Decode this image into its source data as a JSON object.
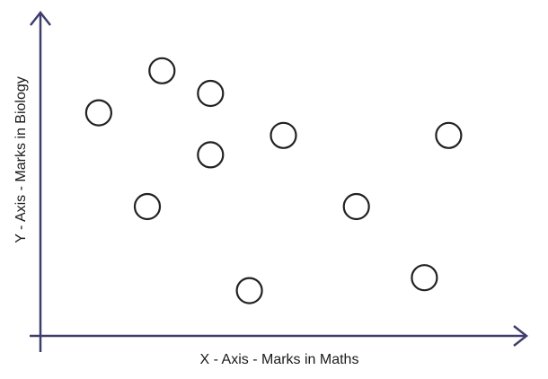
{
  "chart_data": {
    "type": "scatter",
    "title": "",
    "xlabel": "X - Axis - Marks in Maths",
    "ylabel": "Y - Axis - Marks in Biology",
    "xlim": [
      0,
      100
    ],
    "ylim": [
      0,
      100
    ],
    "grid": false,
    "legend": "none",
    "axis_color": "#3f3d6e",
    "marker_color": "#222222",
    "points": [
      {
        "x": 12,
        "y": 69
      },
      {
        "x": 25,
        "y": 82
      },
      {
        "x": 35,
        "y": 75
      },
      {
        "x": 22,
        "y": 40
      },
      {
        "x": 35,
        "y": 56
      },
      {
        "x": 50,
        "y": 62
      },
      {
        "x": 43,
        "y": 14
      },
      {
        "x": 65,
        "y": 40
      },
      {
        "x": 79,
        "y": 18
      },
      {
        "x": 84,
        "y": 62
      }
    ]
  }
}
